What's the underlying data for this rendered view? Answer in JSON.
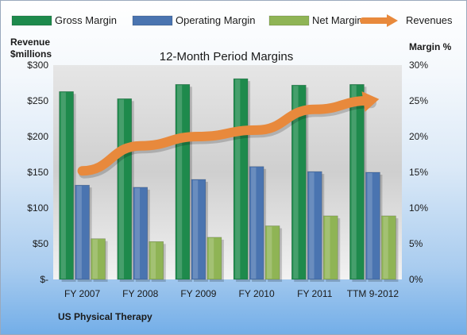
{
  "chart_data": {
    "type": "bar",
    "title": "12-Month Period Margins",
    "company": "US Physical Therapy",
    "left_axis_label": [
      "Revenue",
      "$millions"
    ],
    "right_axis_label": "Margin %",
    "categories": [
      "FY 2007",
      "FY 2008",
      "FY 2009",
      "FY 2010",
      "FY 2011",
      "TTM 9-2012"
    ],
    "left_axis": {
      "min": 0,
      "max": 300,
      "ticks": [
        "$-",
        "$50",
        "$100",
        "$150",
        "$200",
        "$250",
        "$300"
      ]
    },
    "right_axis": {
      "min": 0,
      "max": 30,
      "ticks": [
        "0%",
        "5%",
        "10%",
        "15%",
        "20%",
        "25%",
        "30%"
      ]
    },
    "series": [
      {
        "name": "Gross Margin",
        "kind": "bar",
        "axis": "right",
        "color": "#1e8a4c",
        "values": [
          26.3,
          25.3,
          27.3,
          28.1,
          27.2,
          27.3
        ]
      },
      {
        "name": "Operating Margin",
        "kind": "bar",
        "axis": "right",
        "color": "#4a74b0",
        "values": [
          13.2,
          12.9,
          14.0,
          15.8,
          15.1,
          15.0
        ]
      },
      {
        "name": "Net Margin",
        "kind": "bar",
        "axis": "right",
        "color": "#8fb455",
        "values": [
          5.7,
          5.3,
          5.9,
          7.5,
          8.9,
          8.9
        ]
      },
      {
        "name": "Revenues",
        "kind": "line",
        "axis": "left",
        "color": "#e8893c",
        "values": [
          152,
          187,
          200,
          209,
          238,
          251
        ]
      }
    ],
    "grid": false,
    "legend_position": "top"
  }
}
